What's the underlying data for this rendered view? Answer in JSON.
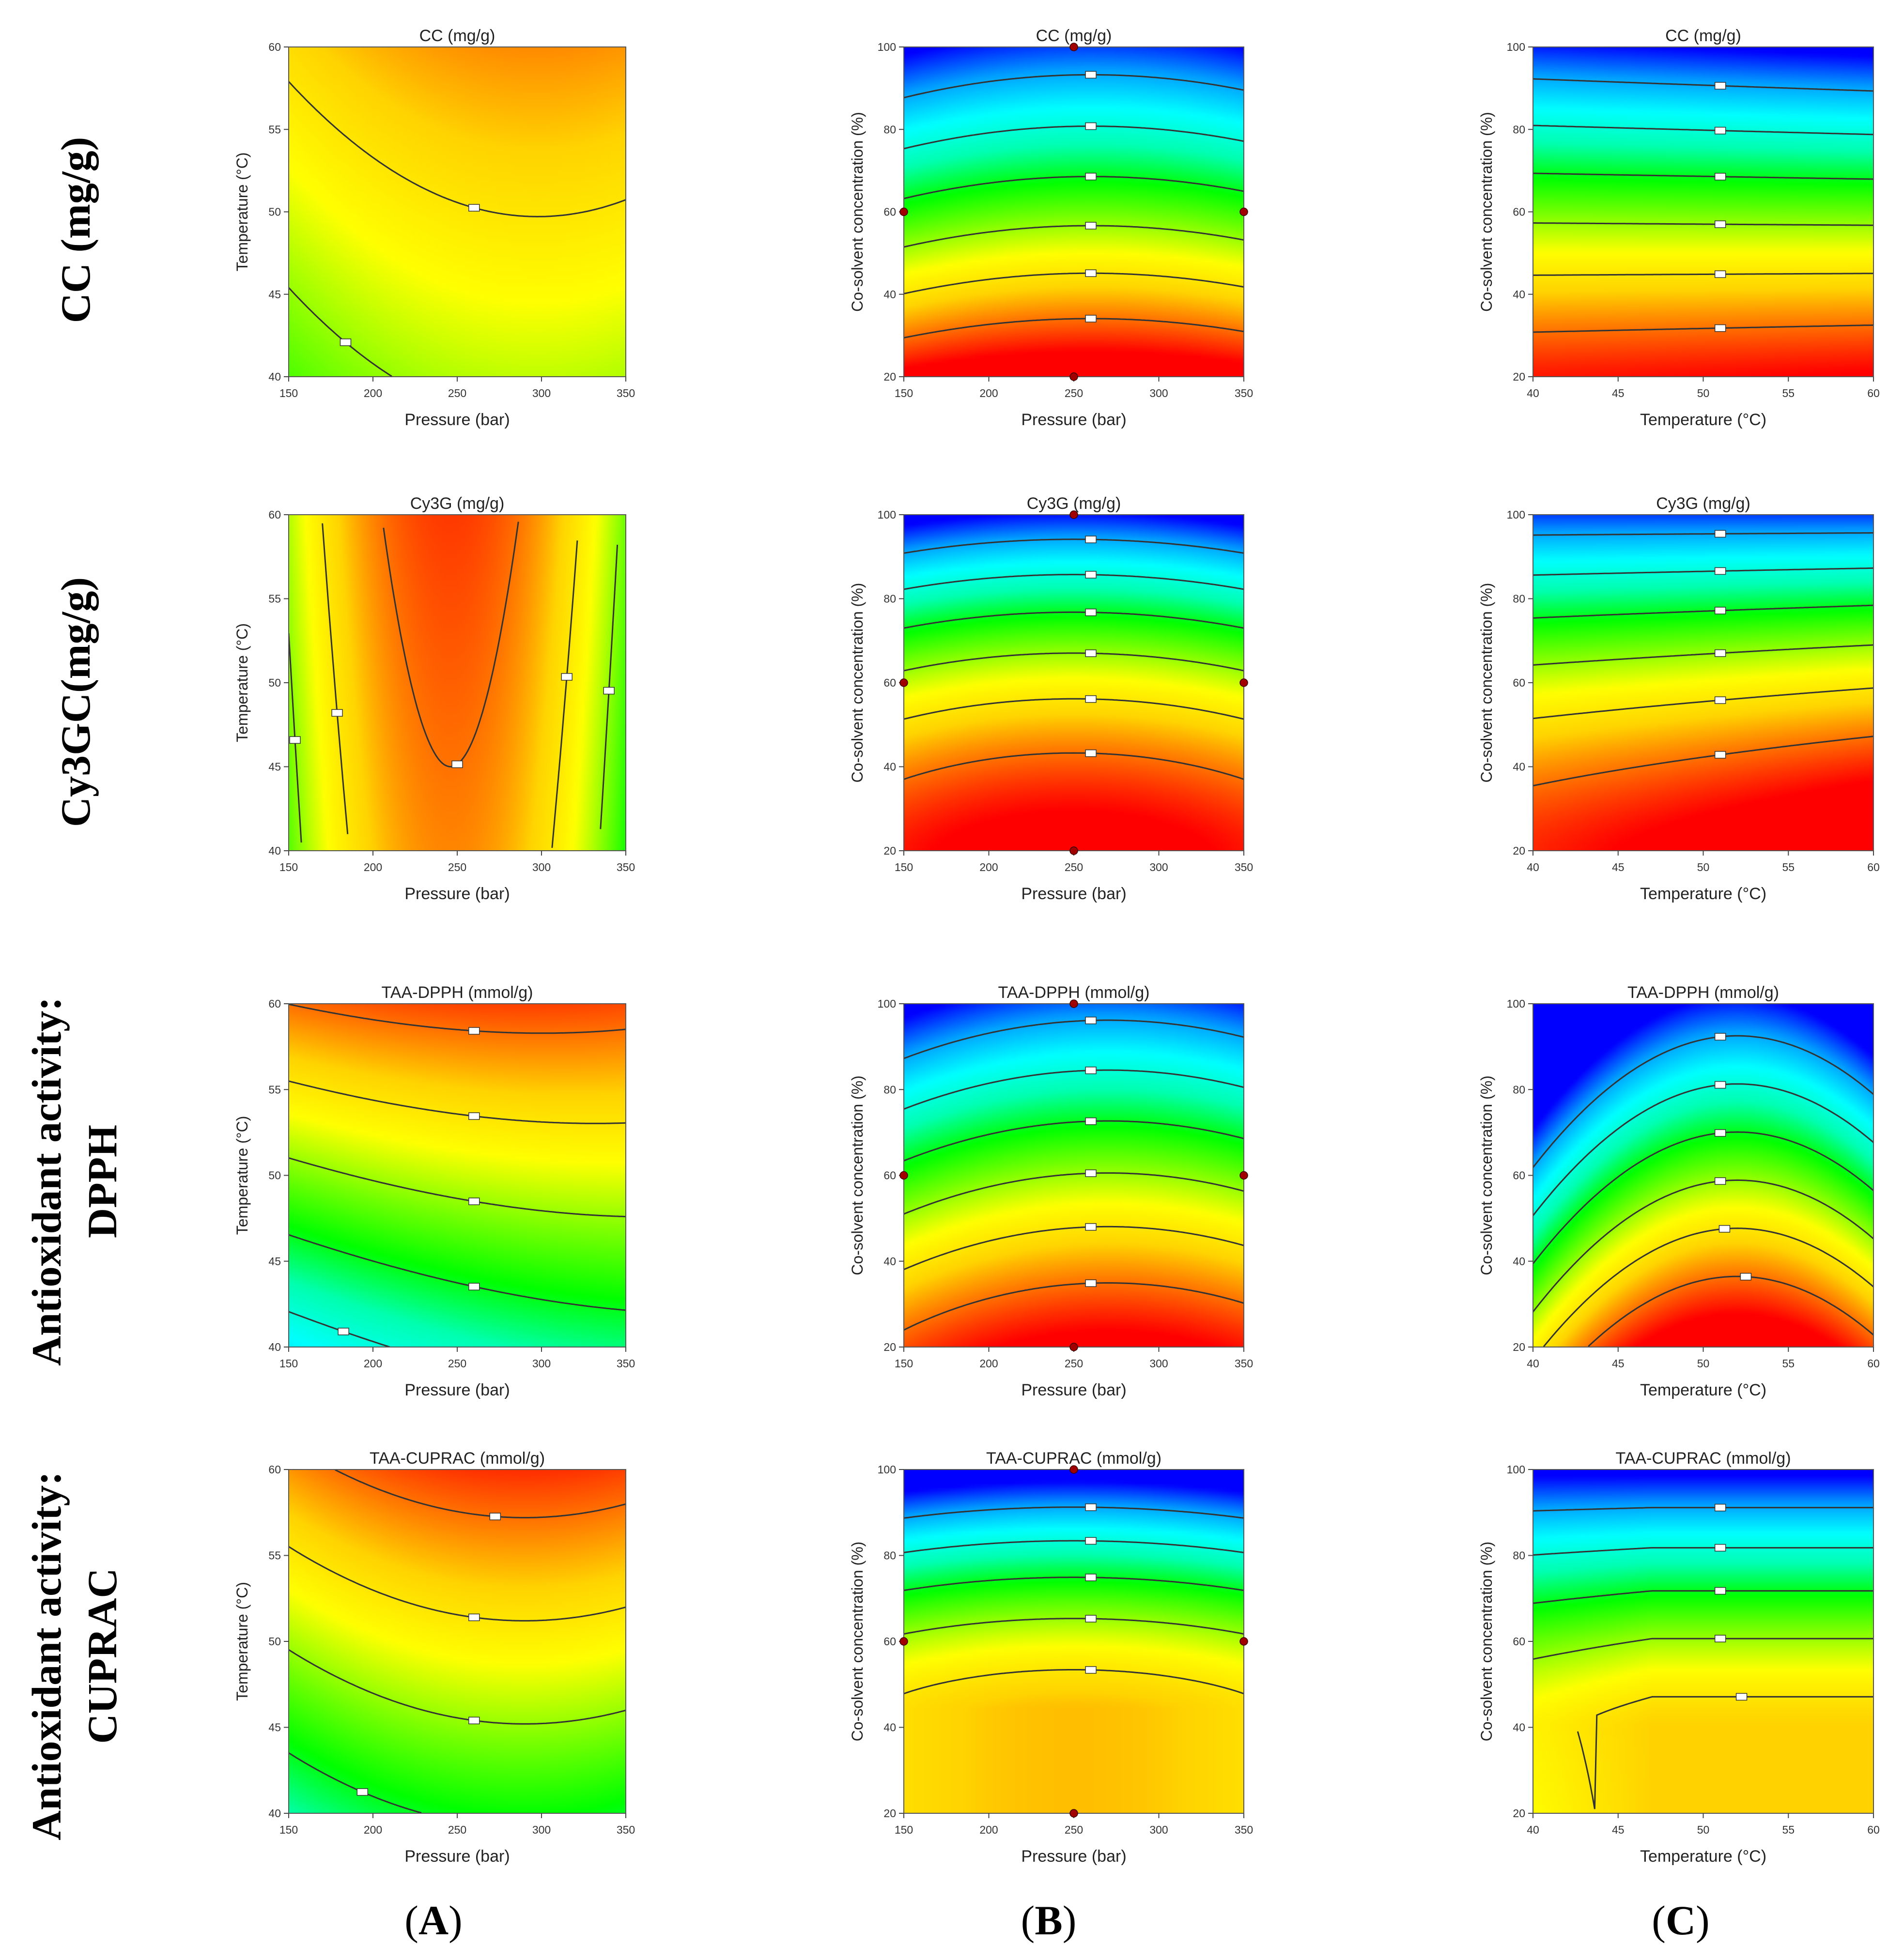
{
  "figure": {
    "row_labels": [
      {
        "line1": "CC (mg/g)",
        "line2": ""
      },
      {
        "line1": "Cy3GC(mg/g)",
        "line2": ""
      },
      {
        "line1": "Antioxidant activity:",
        "line2": "DPPH"
      },
      {
        "line1": "Antioxidant activity:",
        "line2": "CUPRAC"
      }
    ],
    "column_labels": [
      {
        "open": "(",
        "letter": "A",
        "close": ")"
      },
      {
        "open": "(",
        "letter": "B",
        "close": ")"
      },
      {
        "open": "(",
        "letter": "C",
        "close": ")"
      }
    ]
  },
  "colors": {
    "scale": [
      "#ff0000",
      "#ff6a00",
      "#ffd400",
      "#ffff00",
      "#7dff00",
      "#00ff00",
      "#00ffb0",
      "#00ffff",
      "#00a0ff",
      "#0000ff"
    ],
    "contour": "#333333",
    "design_point": "#a00000"
  },
  "chart_data": [
    {
      "type": "contour",
      "title": "CC (mg/g)",
      "x_var": "P",
      "y_var": "T",
      "xlabel": "Pressure (bar)",
      "ylabel": "Temperature (°C)",
      "xlim": [
        150,
        350
      ],
      "ylim": [
        40,
        60
      ],
      "xticks": [
        "150",
        "200",
        "250",
        "300",
        "350"
      ],
      "yticks": [
        "40",
        "45",
        "50",
        "55",
        "60"
      ],
      "design_points": []
    },
    {
      "type": "contour",
      "title": "CC (mg/g)",
      "x_var": "P",
      "y_var": "C",
      "xlabel": "Pressure (bar)",
      "ylabel": "Co-solvent concentration (%)",
      "xlim": [
        150,
        350
      ],
      "ylim": [
        20,
        100
      ],
      "xticks": [
        "150",
        "200",
        "250",
        "300",
        "350"
      ],
      "yticks": [
        "20",
        "40",
        "60",
        "80",
        "100"
      ],
      "design_points": [
        [
          250,
          100
        ],
        [
          150,
          60
        ],
        [
          350,
          60
        ],
        [
          250,
          20
        ]
      ]
    },
    {
      "type": "contour",
      "title": "CC (mg/g)",
      "x_var": "T",
      "y_var": "C",
      "xlabel": "Temperature (°C)",
      "ylabel": "Co-solvent concentration (%)",
      "xlim": [
        40,
        60
      ],
      "ylim": [
        20,
        100
      ],
      "xticks": [
        "40",
        "45",
        "50",
        "55",
        "60"
      ],
      "yticks": [
        "20",
        "40",
        "60",
        "80",
        "100"
      ],
      "design_points": []
    },
    {
      "type": "contour",
      "title": "Cy3G (mg/g)",
      "x_var": "P",
      "y_var": "T",
      "xlabel": "Pressure (bar)",
      "ylabel": "Temperature (°C)",
      "xlim": [
        150,
        350
      ],
      "ylim": [
        40,
        60
      ],
      "xticks": [
        "150",
        "200",
        "250",
        "300",
        "350"
      ],
      "yticks": [
        "40",
        "45",
        "50",
        "55",
        "60"
      ],
      "design_points": []
    },
    {
      "type": "contour",
      "title": "Cy3G (mg/g)",
      "x_var": "P",
      "y_var": "C",
      "xlabel": "Pressure (bar)",
      "ylabel": "Co-solvent concentration (%)",
      "xlim": [
        150,
        350
      ],
      "ylim": [
        20,
        100
      ],
      "xticks": [
        "150",
        "200",
        "250",
        "300",
        "350"
      ],
      "yticks": [
        "20",
        "40",
        "60",
        "80",
        "100"
      ],
      "design_points": [
        [
          250,
          100
        ],
        [
          150,
          60
        ],
        [
          350,
          60
        ],
        [
          250,
          20
        ]
      ]
    },
    {
      "type": "contour",
      "title": "Cy3G (mg/g)",
      "x_var": "T",
      "y_var": "C",
      "xlabel": "Temperature (°C)",
      "ylabel": "Co-solvent concentration (%)",
      "xlim": [
        40,
        60
      ],
      "ylim": [
        20,
        100
      ],
      "xticks": [
        "40",
        "45",
        "50",
        "55",
        "60"
      ],
      "yticks": [
        "20",
        "40",
        "60",
        "80",
        "100"
      ],
      "design_points": []
    },
    {
      "type": "contour",
      "title": "TAA-DPPH (mmol/g)",
      "x_var": "P",
      "y_var": "T",
      "xlabel": "Pressure (bar)",
      "ylabel": "Temperature (°C)",
      "xlim": [
        150,
        350
      ],
      "ylim": [
        40,
        60
      ],
      "xticks": [
        "150",
        "200",
        "250",
        "300",
        "350"
      ],
      "yticks": [
        "40",
        "45",
        "50",
        "55",
        "60"
      ],
      "design_points": []
    },
    {
      "type": "contour",
      "title": "TAA-DPPH (mmol/g)",
      "x_var": "P",
      "y_var": "C",
      "xlabel": "Pressure (bar)",
      "ylabel": "Co-solvent concentration (%)",
      "xlim": [
        150,
        350
      ],
      "ylim": [
        20,
        100
      ],
      "xticks": [
        "150",
        "200",
        "250",
        "300",
        "350"
      ],
      "yticks": [
        "20",
        "40",
        "60",
        "80",
        "100"
      ],
      "design_points": [
        [
          250,
          100
        ],
        [
          150,
          60
        ],
        [
          350,
          60
        ],
        [
          250,
          20
        ]
      ]
    },
    {
      "type": "contour",
      "title": "TAA-DPPH (mmol/g)",
      "x_var": "T",
      "y_var": "C",
      "xlabel": "Temperature (°C)",
      "ylabel": "Co-solvent concentration (%)",
      "xlim": [
        40,
        60
      ],
      "ylim": [
        20,
        100
      ],
      "xticks": [
        "40",
        "45",
        "50",
        "55",
        "60"
      ],
      "yticks": [
        "20",
        "40",
        "60",
        "80",
        "100"
      ],
      "design_points": []
    },
    {
      "type": "contour",
      "title": "TAA-CUPRAC (mmol/g)",
      "x_var": "P",
      "y_var": "T",
      "xlabel": "Pressure (bar)",
      "ylabel": "Temperature (°C)",
      "xlim": [
        150,
        350
      ],
      "ylim": [
        40,
        60
      ],
      "xticks": [
        "150",
        "200",
        "250",
        "300",
        "350"
      ],
      "yticks": [
        "40",
        "45",
        "50",
        "55",
        "60"
      ],
      "design_points": []
    },
    {
      "type": "contour",
      "title": "TAA-CUPRAC (mmol/g)",
      "x_var": "P",
      "y_var": "C",
      "xlabel": "Pressure (bar)",
      "ylabel": "Co-solvent concentration (%)",
      "xlim": [
        150,
        350
      ],
      "ylim": [
        20,
        100
      ],
      "xticks": [
        "150",
        "200",
        "250",
        "300",
        "350"
      ],
      "yticks": [
        "20",
        "40",
        "60",
        "80",
        "100"
      ],
      "design_points": [
        [
          250,
          100
        ],
        [
          150,
          60
        ],
        [
          350,
          60
        ],
        [
          250,
          20
        ]
      ]
    },
    {
      "type": "contour",
      "title": "TAA-CUPRAC (mmol/g)",
      "x_var": "T",
      "y_var": "C",
      "xlabel": "Temperature (°C)",
      "ylabel": "Co-solvent concentration (%)",
      "xlim": [
        40,
        60
      ],
      "ylim": [
        20,
        100
      ],
      "xticks": [
        "40",
        "45",
        "50",
        "55",
        "60"
      ],
      "yticks": [
        "20",
        "40",
        "60",
        "80",
        "100"
      ],
      "design_points": []
    }
  ]
}
